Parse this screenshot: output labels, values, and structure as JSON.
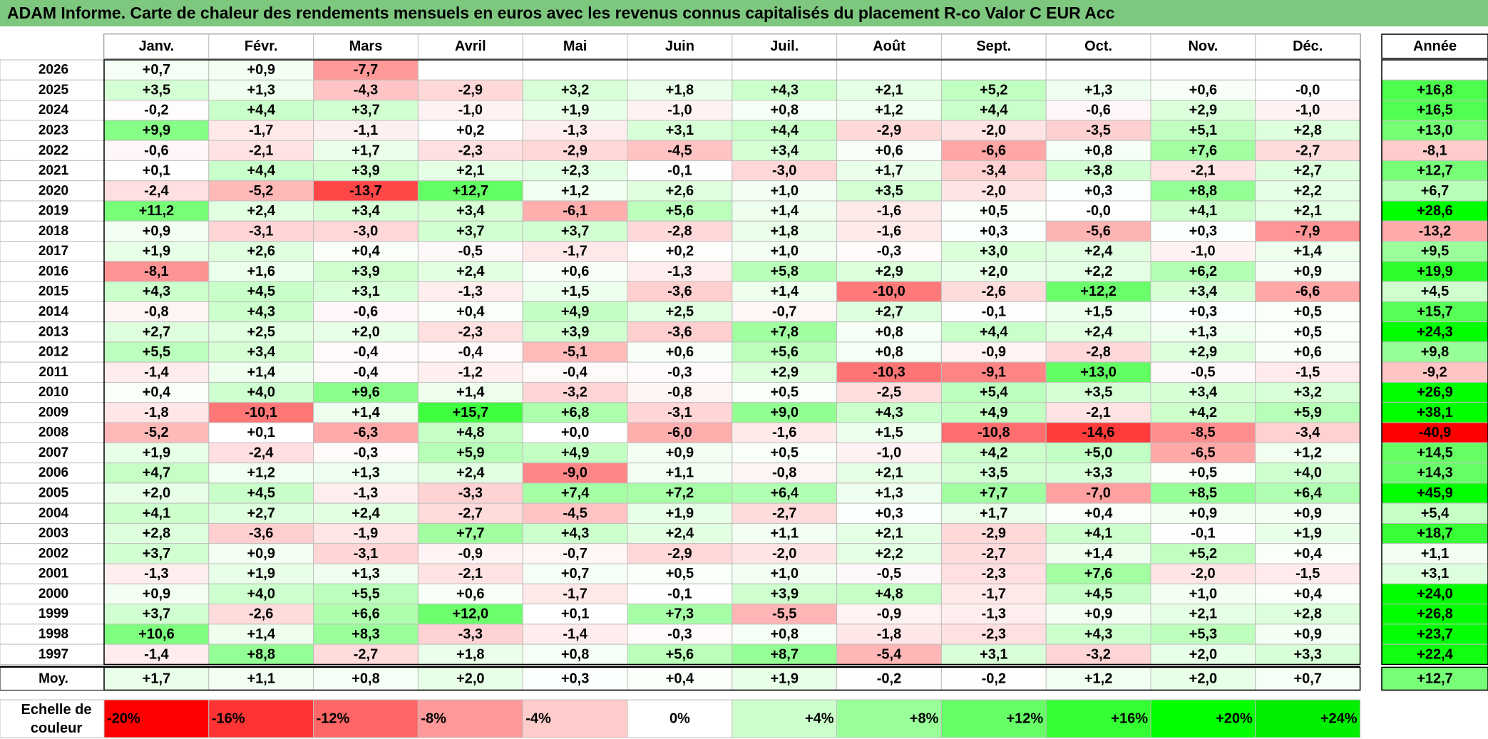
{
  "title": "ADAM Informe. Carte de chaleur des rendements mensuels en euros avec les revenus connus capitalisés du placement R-co Valor C EUR Acc",
  "chart_data": {
    "type": "heatmap",
    "title": "ADAM Informe. Carte de chaleur des rendements mensuels en euros avec les revenus connus capitalisés du placement R-co Valor C EUR Acc",
    "months": [
      "Janv.",
      "Févr.",
      "Mars",
      "Avril",
      "Mai",
      "Juin",
      "Juil.",
      "Août",
      "Sept.",
      "Oct.",
      "Nov.",
      "Déc."
    ],
    "annual_header": "Année",
    "avg_label": "Moy.",
    "rows": [
      {
        "year": "2026",
        "values": [
          "+0,7",
          "+0,9",
          "-7,7",
          "",
          "",
          "",
          "",
          "",
          "",
          "",
          "",
          ""
        ],
        "annual": ""
      },
      {
        "year": "2025",
        "values": [
          "+3,5",
          "+1,3",
          "-4,3",
          "-2,9",
          "+3,2",
          "+1,8",
          "+4,3",
          "+2,1",
          "+5,2",
          "+1,3",
          "+0,6",
          "-0,0"
        ],
        "annual": "+16,8"
      },
      {
        "year": "2024",
        "values": [
          "-0,2",
          "+4,4",
          "+3,7",
          "-1,0",
          "+1,9",
          "-1,0",
          "+0,8",
          "+1,2",
          "+4,4",
          "-0,6",
          "+2,9",
          "-1,0"
        ],
        "annual": "+16,5"
      },
      {
        "year": "2023",
        "values": [
          "+9,9",
          "-1,7",
          "-1,1",
          "+0,2",
          "-1,3",
          "+3,1",
          "+4,4",
          "-2,9",
          "-2,0",
          "-3,5",
          "+5,1",
          "+2,8"
        ],
        "annual": "+13,0"
      },
      {
        "year": "2022",
        "values": [
          "-0,6",
          "-2,1",
          "+1,7",
          "-2,3",
          "-2,9",
          "-4,5",
          "+3,4",
          "+0,6",
          "-6,6",
          "+0,8",
          "+7,6",
          "-2,7"
        ],
        "annual": "-8,1"
      },
      {
        "year": "2021",
        "values": [
          "+0,1",
          "+4,4",
          "+3,9",
          "+2,1",
          "+2,3",
          "-0,1",
          "-3,0",
          "+1,7",
          "-3,4",
          "+3,8",
          "-2,1",
          "+2,7"
        ],
        "annual": "+12,7"
      },
      {
        "year": "2020",
        "values": [
          "-2,4",
          "-5,2",
          "-13,7",
          "+12,7",
          "+1,2",
          "+2,6",
          "+1,0",
          "+3,5",
          "-2,0",
          "+0,3",
          "+8,8",
          "+2,2"
        ],
        "annual": "+6,7"
      },
      {
        "year": "2019",
        "values": [
          "+11,2",
          "+2,4",
          "+3,4",
          "+3,4",
          "-6,1",
          "+5,6",
          "+1,4",
          "-1,6",
          "+0,5",
          "-0,0",
          "+4,1",
          "+2,1"
        ],
        "annual": "+28,6"
      },
      {
        "year": "2018",
        "values": [
          "+0,9",
          "-3,1",
          "-3,0",
          "+3,7",
          "+3,7",
          "-2,8",
          "+1,8",
          "-1,6",
          "+0,3",
          "-5,6",
          "+0,3",
          "-7,9"
        ],
        "annual": "-13,2"
      },
      {
        "year": "2017",
        "values": [
          "+1,9",
          "+2,6",
          "+0,4",
          "-0,5",
          "-1,7",
          "+0,2",
          "+1,0",
          "-0,3",
          "+3,0",
          "+2,4",
          "-1,0",
          "+1,4"
        ],
        "annual": "+9,5"
      },
      {
        "year": "2016",
        "values": [
          "-8,1",
          "+1,6",
          "+3,9",
          "+2,4",
          "+0,6",
          "-1,3",
          "+5,8",
          "+2,9",
          "+2,0",
          "+2,2",
          "+6,2",
          "+0,9"
        ],
        "annual": "+19,9"
      },
      {
        "year": "2015",
        "values": [
          "+4,3",
          "+4,5",
          "+3,1",
          "-1,3",
          "+1,5",
          "-3,6",
          "+1,4",
          "-10,0",
          "-2,6",
          "+12,2",
          "+3,4",
          "-6,6"
        ],
        "annual": "+4,5"
      },
      {
        "year": "2014",
        "values": [
          "-0,8",
          "+4,3",
          "-0,6",
          "+0,4",
          "+4,9",
          "+2,5",
          "-0,7",
          "+2,7",
          "-0,1",
          "+1,5",
          "+0,3",
          "+0,5"
        ],
        "annual": "+15,7"
      },
      {
        "year": "2013",
        "values": [
          "+2,7",
          "+2,5",
          "+2,0",
          "-2,3",
          "+3,9",
          "-3,6",
          "+7,8",
          "+0,8",
          "+4,4",
          "+2,4",
          "+1,3",
          "+0,5"
        ],
        "annual": "+24,3"
      },
      {
        "year": "2012",
        "values": [
          "+5,5",
          "+3,4",
          "-0,4",
          "-0,4",
          "-5,1",
          "+0,6",
          "+5,6",
          "+0,8",
          "-0,9",
          "-2,8",
          "+2,9",
          "+0,6"
        ],
        "annual": "+9,8"
      },
      {
        "year": "2011",
        "values": [
          "-1,4",
          "+1,4",
          "-0,4",
          "-1,2",
          "-0,4",
          "-0,3",
          "+2,9",
          "-10,3",
          "-9,1",
          "+13,0",
          "-0,5",
          "-1,5"
        ],
        "annual": "-9,2"
      },
      {
        "year": "2010",
        "values": [
          "+0,4",
          "+4,0",
          "+9,6",
          "+1,4",
          "-3,2",
          "-0,8",
          "+0,5",
          "-2,5",
          "+5,4",
          "+3,5",
          "+3,4",
          "+3,2"
        ],
        "annual": "+26,9"
      },
      {
        "year": "2009",
        "values": [
          "-1,8",
          "-10,1",
          "+1,4",
          "+15,7",
          "+6,8",
          "-3,1",
          "+9,0",
          "+4,3",
          "+4,9",
          "-2,1",
          "+4,2",
          "+5,9"
        ],
        "annual": "+38,1"
      },
      {
        "year": "2008",
        "values": [
          "-5,2",
          "+0,1",
          "-6,3",
          "+4,8",
          "+0,0",
          "-6,0",
          "-1,6",
          "+1,5",
          "-10,8",
          "-14,6",
          "-8,5",
          "-3,4"
        ],
        "annual": "-40,9"
      },
      {
        "year": "2007",
        "values": [
          "+1,9",
          "-2,4",
          "-0,3",
          "+5,9",
          "+4,9",
          "+0,9",
          "+0,5",
          "-1,0",
          "+4,2",
          "+5,0",
          "-6,5",
          "+1,2"
        ],
        "annual": "+14,5"
      },
      {
        "year": "2006",
        "values": [
          "+4,7",
          "+1,2",
          "+1,3",
          "+2,4",
          "-9,0",
          "+1,1",
          "-0,8",
          "+2,1",
          "+3,5",
          "+3,3",
          "+0,5",
          "+4,0"
        ],
        "annual": "+14,3"
      },
      {
        "year": "2005",
        "values": [
          "+2,0",
          "+4,5",
          "-1,3",
          "-3,3",
          "+7,4",
          "+7,2",
          "+6,4",
          "+1,3",
          "+7,7",
          "-7,0",
          "+8,5",
          "+6,4"
        ],
        "annual": "+45,9"
      },
      {
        "year": "2004",
        "values": [
          "+4,1",
          "+2,7",
          "+2,4",
          "-2,7",
          "-4,5",
          "+1,9",
          "-2,7",
          "+0,3",
          "+1,7",
          "+0,4",
          "+0,9",
          "+0,9"
        ],
        "annual": "+5,4"
      },
      {
        "year": "2003",
        "values": [
          "+2,8",
          "-3,6",
          "-1,9",
          "+7,7",
          "+4,3",
          "+2,4",
          "+1,1",
          "+2,1",
          "-2,9",
          "+4,1",
          "-0,1",
          "+1,9"
        ],
        "annual": "+18,7"
      },
      {
        "year": "2002",
        "values": [
          "+3,7",
          "+0,9",
          "-3,1",
          "-0,9",
          "-0,7",
          "-2,9",
          "-2,0",
          "+2,2",
          "-2,7",
          "+1,4",
          "+5,2",
          "+0,4"
        ],
        "annual": "+1,1"
      },
      {
        "year": "2001",
        "values": [
          "-1,3",
          "+1,9",
          "+1,3",
          "-2,1",
          "+0,7",
          "+0,5",
          "+1,0",
          "-0,5",
          "-2,3",
          "+7,6",
          "-2,0",
          "-1,5"
        ],
        "annual": "+3,1"
      },
      {
        "year": "2000",
        "values": [
          "+0,9",
          "+4,0",
          "+5,5",
          "+0,6",
          "-1,7",
          "-0,1",
          "+3,9",
          "+4,8",
          "-1,7",
          "+4,5",
          "+1,0",
          "+0,4"
        ],
        "annual": "+24,0"
      },
      {
        "year": "1999",
        "values": [
          "+3,7",
          "-2,6",
          "+6,6",
          "+12,0",
          "+0,1",
          "+7,3",
          "-5,5",
          "-0,9",
          "-1,3",
          "+0,9",
          "+2,1",
          "+2,8"
        ],
        "annual": "+26,8"
      },
      {
        "year": "1998",
        "values": [
          "+10,6",
          "+1,4",
          "+8,3",
          "-3,3",
          "-1,4",
          "-0,3",
          "+0,8",
          "-1,8",
          "-2,3",
          "+4,3",
          "+5,3",
          "+0,9"
        ],
        "annual": "+23,7"
      },
      {
        "year": "1997",
        "values": [
          "-1,4",
          "+8,8",
          "-2,7",
          "+1,8",
          "+0,8",
          "+5,6",
          "+8,7",
          "-5,4",
          "+3,1",
          "-3,2",
          "+2,0",
          "+3,3"
        ],
        "annual": "+22,4"
      }
    ],
    "averages": [
      "+1,7",
      "+1,1",
      "+0,8",
      "+2,0",
      "+0,3",
      "+0,4",
      "+1,9",
      "-0,2",
      "-0,2",
      "+1,2",
      "+2,0",
      "+0,7"
    ],
    "average_annual": "+12,7",
    "color_scale": {
      "label_line1": "Echelle de",
      "label_line2": "couleur",
      "stops": [
        {
          "label": "-20%",
          "value": -20,
          "color": "#ff0000"
        },
        {
          "label": "-16%",
          "value": -16,
          "color": "#ff3333"
        },
        {
          "label": "-12%",
          "value": -12,
          "color": "#ff6666"
        },
        {
          "label": "-8%",
          "value": -8,
          "color": "#ff9999"
        },
        {
          "label": "-4%",
          "value": -4,
          "color": "#ffcccc"
        },
        {
          "label": "0%",
          "value": 0,
          "color": "#ffffff"
        },
        {
          "label": "+4%",
          "value": 4,
          "color": "#ccffcc"
        },
        {
          "label": "+8%",
          "value": 8,
          "color": "#99ff99"
        },
        {
          "label": "+12%",
          "value": 12,
          "color": "#66ff66"
        },
        {
          "label": "+16%",
          "value": 16,
          "color": "#33ff33"
        },
        {
          "label": "+20%",
          "value": 20,
          "color": "#00ff00"
        },
        {
          "label": "+24%",
          "value": 24,
          "color": "#00ee00"
        }
      ]
    },
    "title_bar_color": "#7dc77f"
  }
}
